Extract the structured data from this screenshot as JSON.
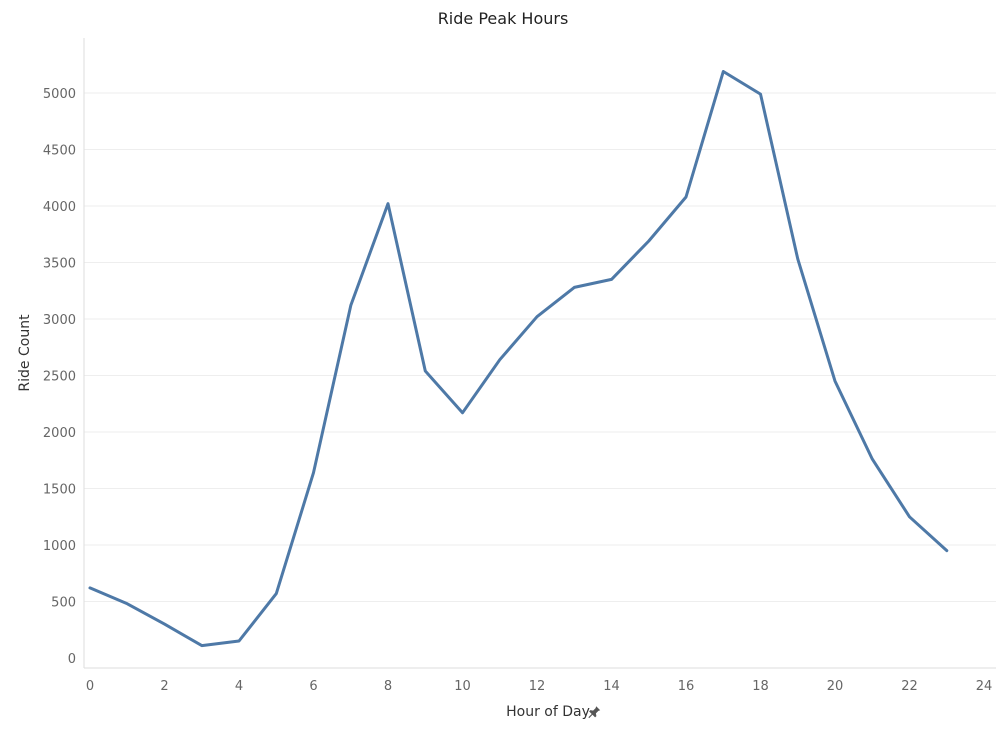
{
  "chart_data": {
    "type": "line",
    "title": "Ride Peak Hours",
    "xlabel": "Hour of Day",
    "ylabel": "Ride Count",
    "xlim": [
      0,
      24
    ],
    "ylim": [
      0,
      5000
    ],
    "x_ticks": [
      0,
      2,
      4,
      6,
      8,
      10,
      12,
      14,
      16,
      18,
      20,
      22,
      24
    ],
    "y_ticks": [
      0,
      500,
      1000,
      1500,
      2000,
      2500,
      3000,
      3500,
      4000,
      4500,
      5000
    ],
    "grid": "horizontal",
    "line_color": "#4e79a7",
    "series": [
      {
        "x": [
          0,
          1,
          2,
          3,
          4,
          5,
          6,
          7,
          8,
          9,
          10,
          11,
          12,
          13,
          14,
          15,
          16,
          17,
          18,
          19,
          20,
          21,
          22,
          23
        ],
        "values": [
          620,
          480,
          300,
          110,
          150,
          570,
          1640,
          3120,
          4020,
          2540,
          2170,
          2640,
          3020,
          3280,
          3350,
          3690,
          4080,
          5190,
          4990,
          3530,
          2450,
          1760,
          1250,
          950
        ]
      }
    ]
  }
}
